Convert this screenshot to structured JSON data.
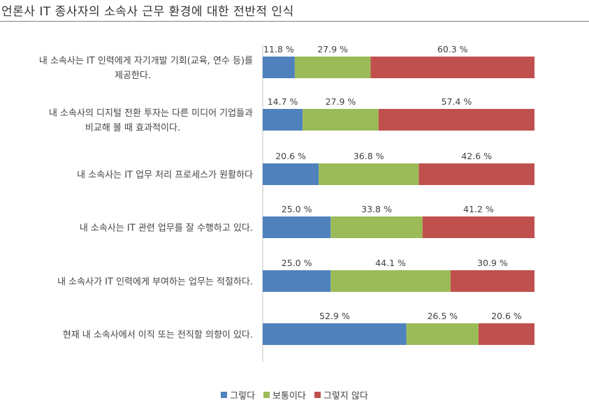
{
  "page_title": "언론사 IT 종사자의 소속사 근무 환경에 대한 전반적 인식",
  "chart_data": {
    "type": "bar",
    "stacked": true,
    "horizontal": true,
    "xlim": [
      0,
      100
    ],
    "categories": [
      [
        "내 소속사는 IT 인력에게 자기개발 기회(교육, 연수 등)를",
        "제공한다."
      ],
      [
        "내 소속사의 디지털 전환 투자는 다른 미디어 기업들과",
        "비교해 볼 때 효과적이다."
      ],
      [
        "내 소속사는 IT 업무 처리 프로세스가 원활하다"
      ],
      [
        "내 소속사는 IT 관련 업무를 잘 수행하고 있다."
      ],
      [
        "내 소속사가 IT 인력에게 부여하는 업무는 적절하다."
      ],
      [
        "현재 내 소속사에서 이직 또는 전직할 의향이 있다."
      ]
    ],
    "series": [
      {
        "name": "그렇다",
        "color": "#4f81bd",
        "values": [
          11.8,
          14.7,
          20.6,
          25.0,
          25.0,
          52.9
        ],
        "labels": [
          "11.8 %",
          "14.7 %",
          "20.6 %",
          "25.0 %",
          "25.0 %",
          "52.9 %"
        ]
      },
      {
        "name": "보통이다",
        "color": "#9bbb59",
        "values": [
          27.9,
          27.9,
          36.8,
          33.8,
          44.1,
          26.5
        ],
        "labels": [
          "27.9 %",
          "27.9 %",
          "36.8 %",
          "33.8 %",
          "44.1 %",
          "26.5 %"
        ]
      },
      {
        "name": "그렇지 않다",
        "color": "#c0504d",
        "values": [
          60.3,
          57.4,
          42.6,
          41.2,
          30.9,
          20.6
        ],
        "labels": [
          "60.3 %",
          "57.4 %",
          "42.6 %",
          "41.2 %",
          "30.9 %",
          "20.6 %"
        ]
      }
    ],
    "legend_position": "bottom",
    "grid": false
  }
}
